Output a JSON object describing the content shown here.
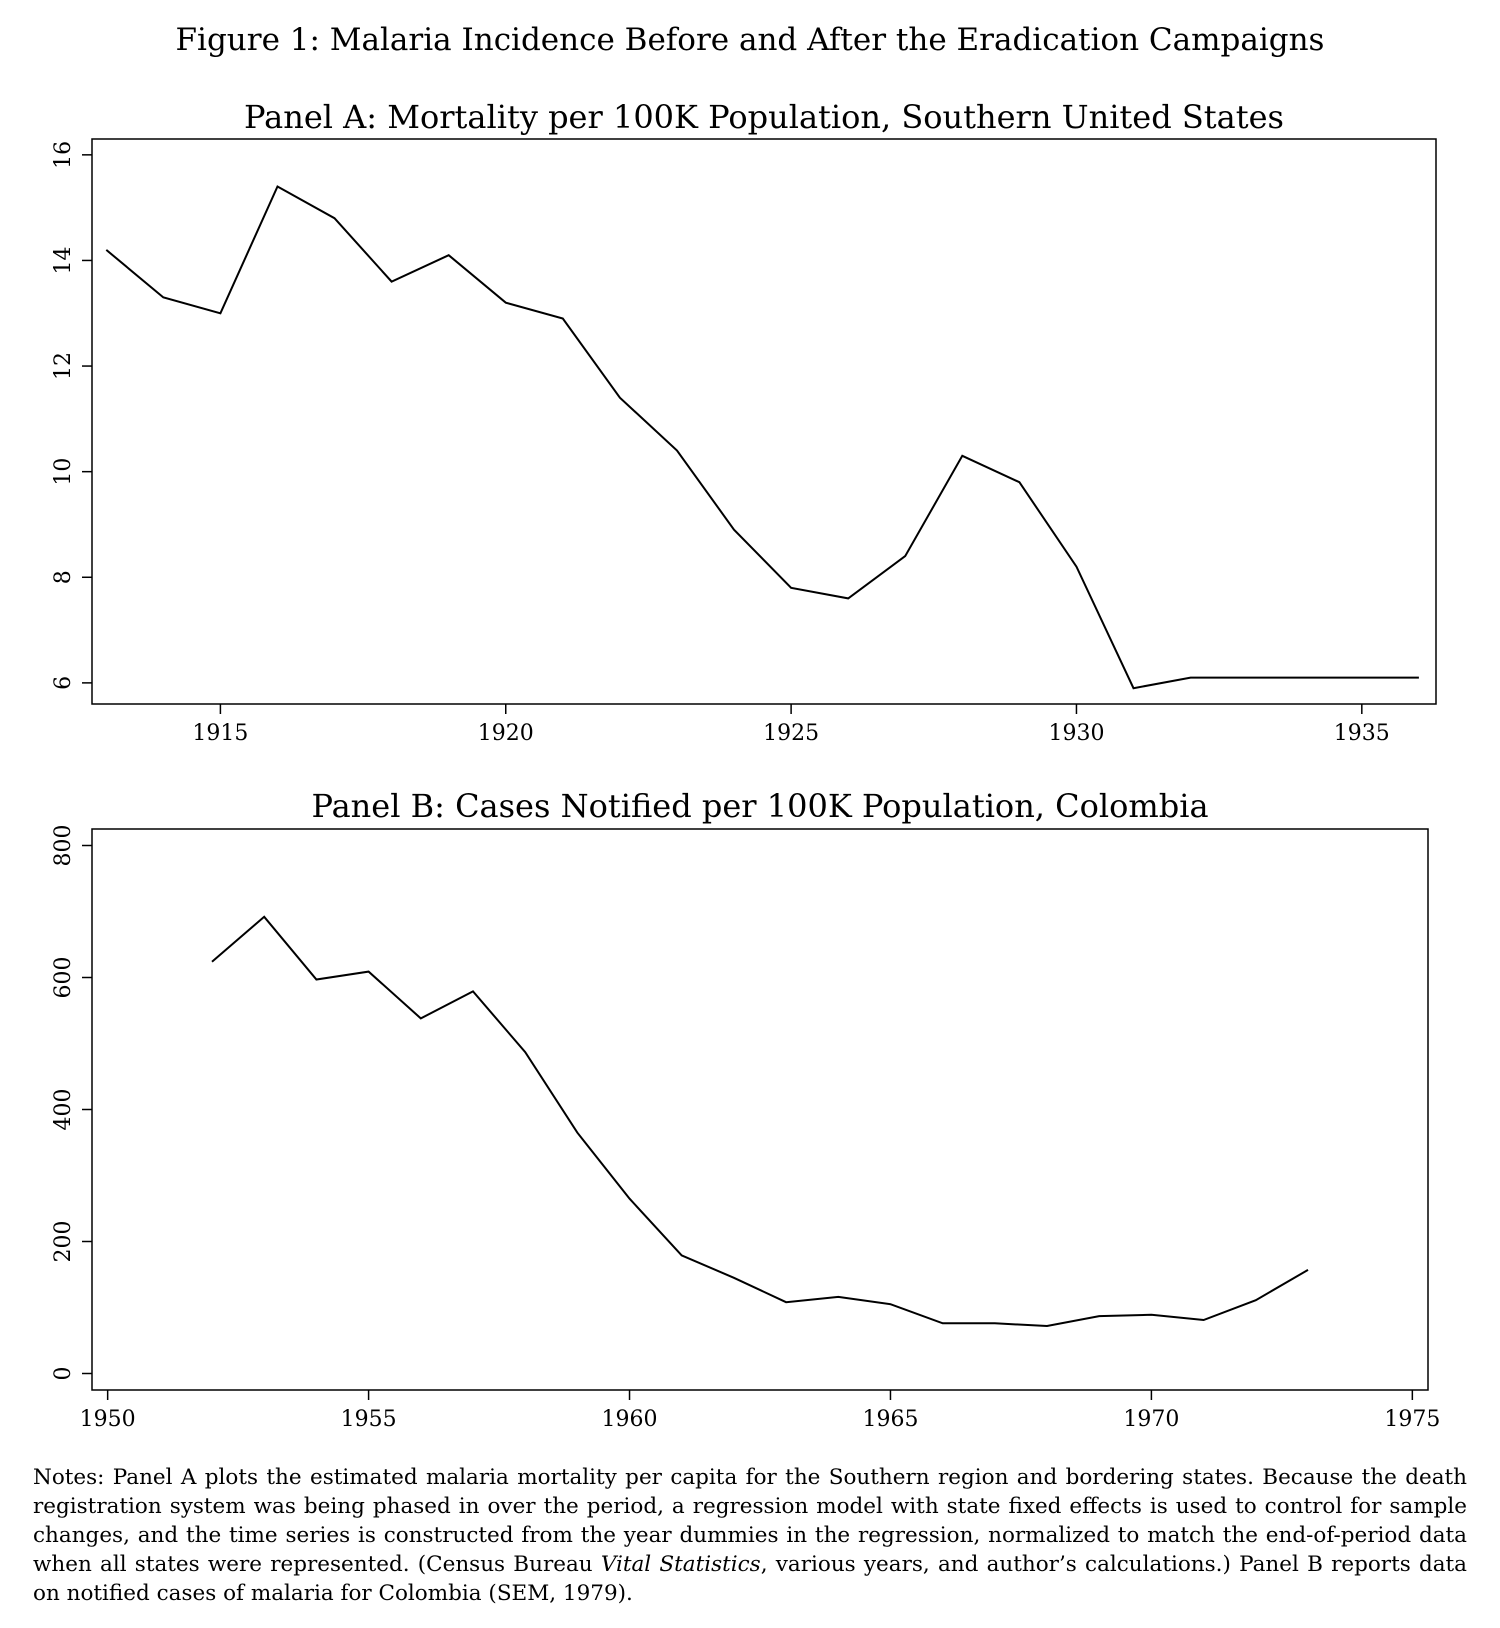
{
  "figure_title": "Figure 1: Malaria Incidence Before and After the Eradication Campaigns",
  "notes": {
    "before_italic": "Notes: Panel A plots the estimated malaria mortality per capita for the Southern region and bordering states. Because the death registration system was being phased in over the period, a regression model with state fixed effects is used to control for sample changes, and the time series is constructed from the year dummies in the regression, normalized to match the end-of-period data when all states were represented. (Census Bureau ",
    "italic": "Vital Statistics",
    "after_italic": ", various years, and author’s calculations.) Panel B reports data on notified cases of malaria for Colombia (SEM, 1979)."
  },
  "chart_data": [
    {
      "type": "line",
      "title": "Panel A: Mortality per 100K Population, Southern United States",
      "xlabel": "",
      "ylabel": "",
      "xlim": [
        1912.75,
        1936.3
      ],
      "ylim": [
        5.6,
        16.3
      ],
      "xticks": [
        1915,
        1920,
        1925,
        1930,
        1935
      ],
      "yticks": [
        6,
        8,
        10,
        12,
        14,
        16
      ],
      "grid": false,
      "legend": "none",
      "color": "#000000",
      "x": [
        1913,
        1914,
        1915,
        1916,
        1917,
        1918,
        1919,
        1920,
        1921,
        1922,
        1923,
        1924,
        1925,
        1926,
        1927,
        1928,
        1929,
        1930,
        1931,
        1932,
        1933,
        1934,
        1935,
        1936
      ],
      "values": [
        14.2,
        13.3,
        13.0,
        15.4,
        14.8,
        13.6,
        14.1,
        13.2,
        12.9,
        11.4,
        10.4,
        8.9,
        7.8,
        7.6,
        8.4,
        10.3,
        9.8,
        8.2,
        5.9,
        6.1,
        6.1,
        6.1,
        6.1,
        6.1
      ]
    },
    {
      "type": "line",
      "title": "Panel B: Cases Notified per 100K Population, Colombia",
      "xlabel": "",
      "ylabel": "",
      "xlim": [
        1949.7,
        1975.3
      ],
      "ylim": [
        -25,
        825
      ],
      "xticks": [
        1950,
        1955,
        1960,
        1965,
        1970,
        1975
      ],
      "yticks": [
        0,
        200,
        400,
        600,
        800
      ],
      "grid": false,
      "legend": "none",
      "color": "#000000",
      "x": [
        1952,
        1953,
        1954,
        1955,
        1956,
        1957,
        1958,
        1959,
        1960,
        1961,
        1962,
        1963,
        1964,
        1965,
        1966,
        1967,
        1968,
        1969,
        1970,
        1971,
        1972,
        1973
      ],
      "values": [
        624,
        692,
        597,
        609,
        538,
        579,
        487,
        365,
        265,
        179,
        145,
        108,
        116,
        105,
        76,
        76,
        72,
        87,
        89,
        81,
        111,
        157
      ]
    }
  ]
}
